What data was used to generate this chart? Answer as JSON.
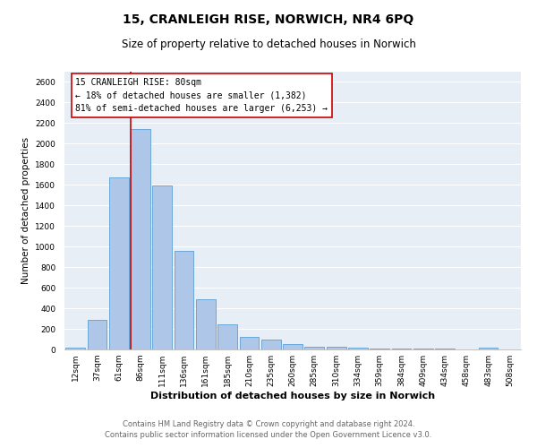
{
  "title": "15, CRANLEIGH RISE, NORWICH, NR4 6PQ",
  "subtitle": "Size of property relative to detached houses in Norwich",
  "xlabel": "Distribution of detached houses by size in Norwich",
  "ylabel": "Number of detached properties",
  "categories": [
    "12sqm",
    "37sqm",
    "61sqm",
    "86sqm",
    "111sqm",
    "136sqm",
    "161sqm",
    "185sqm",
    "210sqm",
    "235sqm",
    "260sqm",
    "285sqm",
    "310sqm",
    "334sqm",
    "359sqm",
    "384sqm",
    "409sqm",
    "434sqm",
    "458sqm",
    "483sqm",
    "508sqm"
  ],
  "values": [
    20,
    290,
    1670,
    2140,
    1590,
    960,
    490,
    245,
    125,
    100,
    50,
    25,
    30,
    15,
    10,
    5,
    10,
    5,
    2,
    15,
    0
  ],
  "bar_color": "#aec6e8",
  "bar_edge_color": "#5a9fd4",
  "vline_index": 3,
  "vline_color": "#cc0000",
  "annotation_text": "15 CRANLEIGH RISE: 80sqm\n← 18% of detached houses are smaller (1,382)\n81% of semi-detached houses are larger (6,253) →",
  "annotation_box_color": "#ffffff",
  "annotation_box_edge": "#cc0000",
  "ylim": [
    0,
    2700
  ],
  "yticks": [
    0,
    200,
    400,
    600,
    800,
    1000,
    1200,
    1400,
    1600,
    1800,
    2000,
    2200,
    2400,
    2600
  ],
  "background_color": "#e8eef5",
  "footer_line1": "Contains HM Land Registry data © Crown copyright and database right 2024.",
  "footer_line2": "Contains public sector information licensed under the Open Government Licence v3.0.",
  "grid_color": "#ffffff",
  "title_fontsize": 10,
  "subtitle_fontsize": 8.5,
  "ylabel_fontsize": 7.5,
  "xlabel_fontsize": 8,
  "tick_fontsize": 6.5,
  "annotation_fontsize": 7,
  "footer_fontsize": 6
}
